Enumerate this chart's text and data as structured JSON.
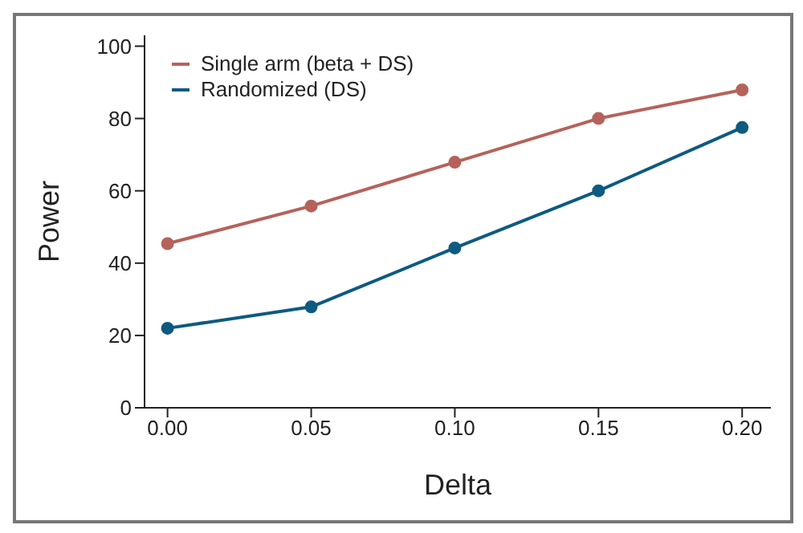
{
  "chart_data": {
    "type": "line",
    "xlabel": "Delta",
    "ylabel": "Power",
    "x": [
      0,
      0.05,
      0.1,
      0.15,
      0.2
    ],
    "series": [
      {
        "name": "Single arm (beta + DS)",
        "color": "#b5625b",
        "values": [
          45.4,
          55.8,
          67.9,
          80,
          87.9
        ]
      },
      {
        "name": "Randomized (DS)",
        "color": "#0e5a80",
        "values": [
          22,
          27.9,
          44.2,
          60,
          77.5
        ]
      }
    ],
    "xlim": [
      -0.008,
      0.21
    ],
    "xticks": [
      {
        "value": 0,
        "label": "0.00"
      },
      {
        "value": 0.05,
        "label": "0.05"
      },
      {
        "value": 0.1,
        "label": "0.10"
      },
      {
        "value": 0.15,
        "label": "0.15"
      },
      {
        "value": 0.2,
        "label": "0.20"
      }
    ],
    "ylim": [
      0,
      103
    ],
    "yticks": [
      0,
      20,
      40,
      60,
      80,
      100
    ],
    "grid": false,
    "legend": "top left",
    "marker": "circle",
    "line_style": "solid"
  }
}
